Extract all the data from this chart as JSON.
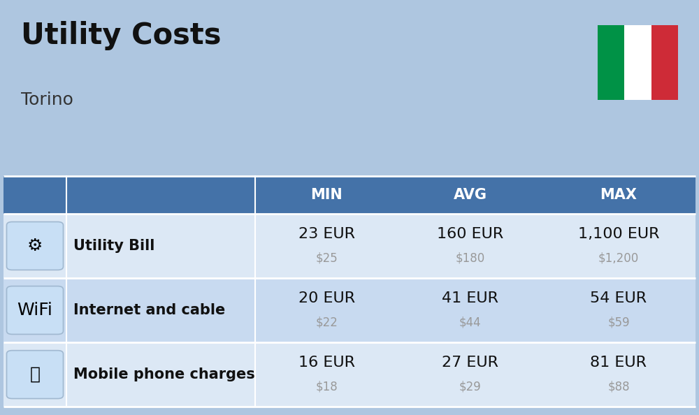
{
  "title": "Utility Costs",
  "subtitle": "Torino",
  "background_color": "#aec6e0",
  "header_bg_color": "#4472a8",
  "header_text_color": "#ffffff",
  "row_bg_colors": [
    "#dce8f5",
    "#c8daf0"
  ],
  "rows": [
    {
      "label": "Utility Bill",
      "min_eur": "23 EUR",
      "min_usd": "$25",
      "avg_eur": "160 EUR",
      "avg_usd": "$180",
      "max_eur": "1,100 EUR",
      "max_usd": "$1,200"
    },
    {
      "label": "Internet and cable",
      "min_eur": "20 EUR",
      "min_usd": "$22",
      "avg_eur": "41 EUR",
      "avg_usd": "$44",
      "max_eur": "54 EUR",
      "max_usd": "$59"
    },
    {
      "label": "Mobile phone charges",
      "min_eur": "16 EUR",
      "min_usd": "$18",
      "avg_eur": "27 EUR",
      "avg_usd": "$29",
      "max_eur": "81 EUR",
      "max_usd": "$88"
    }
  ],
  "eur_fontsize": 16,
  "usd_fontsize": 12,
  "label_fontsize": 15,
  "header_fontsize": 15,
  "title_fontsize": 30,
  "subtitle_fontsize": 18,
  "usd_color": "#999999",
  "label_color": "#111111",
  "eur_color": "#111111",
  "flag_colors": [
    "#009246",
    "#ffffff",
    "#ce2b37"
  ]
}
